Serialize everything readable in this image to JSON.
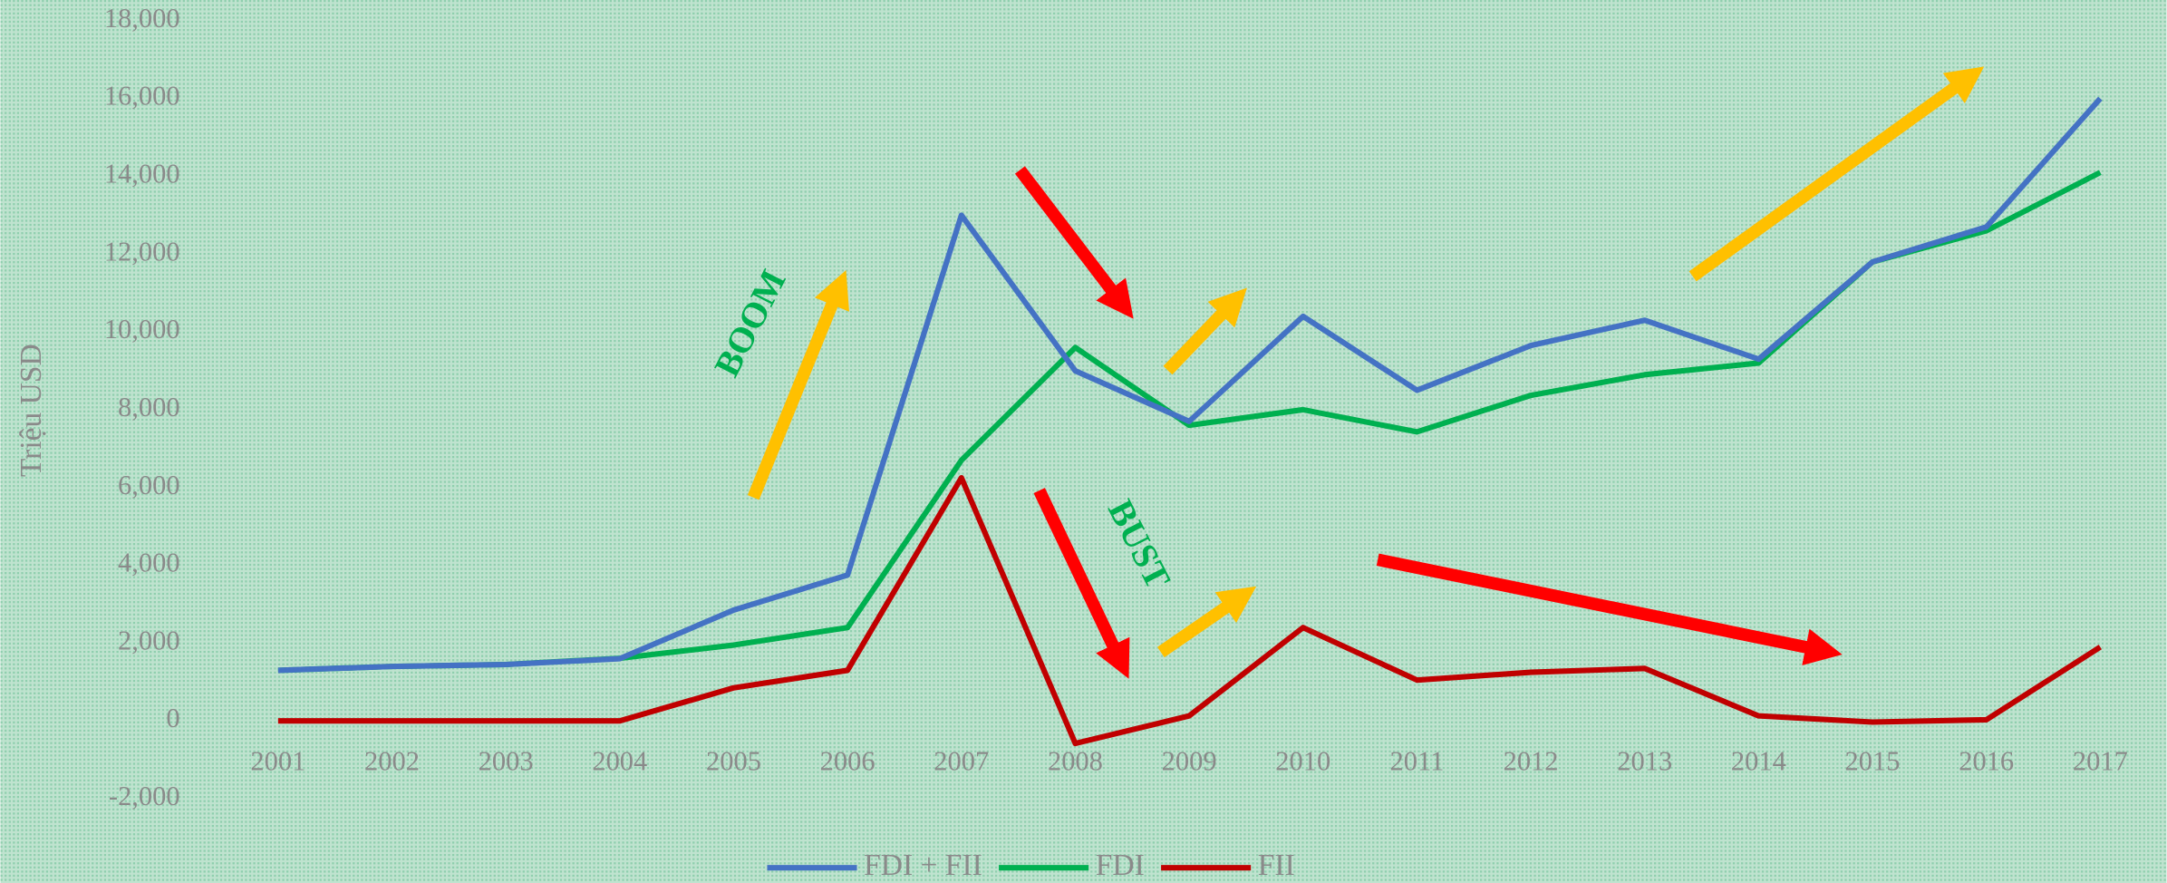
{
  "chart_data": {
    "type": "line",
    "y_label": "Triệu USD",
    "categories": [
      "2001",
      "2002",
      "2003",
      "2004",
      "2005",
      "2006",
      "2007",
      "2008",
      "2009",
      "2010",
      "2011",
      "2012",
      "2013",
      "2014",
      "2015",
      "2016",
      "2017"
    ],
    "series": [
      {
        "name": "FDI + FII",
        "color": "#4472c4",
        "values": [
          1300,
          1400,
          1450,
          1600,
          2850,
          3750,
          13000,
          9000,
          7700,
          10400,
          8500,
          9650,
          10300,
          9300,
          11800,
          12700,
          16000
        ]
      },
      {
        "name": "FDI",
        "color": "#00b050",
        "values": [
          1300,
          1400,
          1450,
          1610,
          1950,
          2400,
          6700,
          9600,
          7600,
          8000,
          7430,
          8370,
          8900,
          9200,
          11800,
          12600,
          14100
        ]
      },
      {
        "name": "FII",
        "color": "#c00000",
        "values": [
          0,
          0,
          0,
          0,
          850,
          1300,
          6250,
          -580,
          130,
          2400,
          1050,
          1250,
          1350,
          130,
          -30,
          30,
          1900
        ]
      }
    ],
    "ylim": [
      -2000,
      18000
    ],
    "yticks": [
      {
        "value": -2000,
        "label": "-2,000"
      },
      0,
      {
        "value": 2000,
        "label": "2,000"
      },
      {
        "value": 4000,
        "label": "4,000"
      },
      {
        "value": 6000,
        "label": "6,000"
      },
      {
        "value": 8000,
        "label": "8,000"
      },
      {
        "value": 10000,
        "label": "10,000"
      },
      {
        "value": 12000,
        "label": "12,000"
      },
      {
        "value": 14000,
        "label": "14,000"
      },
      {
        "value": 16000,
        "label": "16,000"
      },
      {
        "value": 18000,
        "label": "18,000"
      }
    ],
    "annotations": [
      "BOOM",
      "BUST"
    ],
    "legend": "bottom",
    "grid": false
  }
}
